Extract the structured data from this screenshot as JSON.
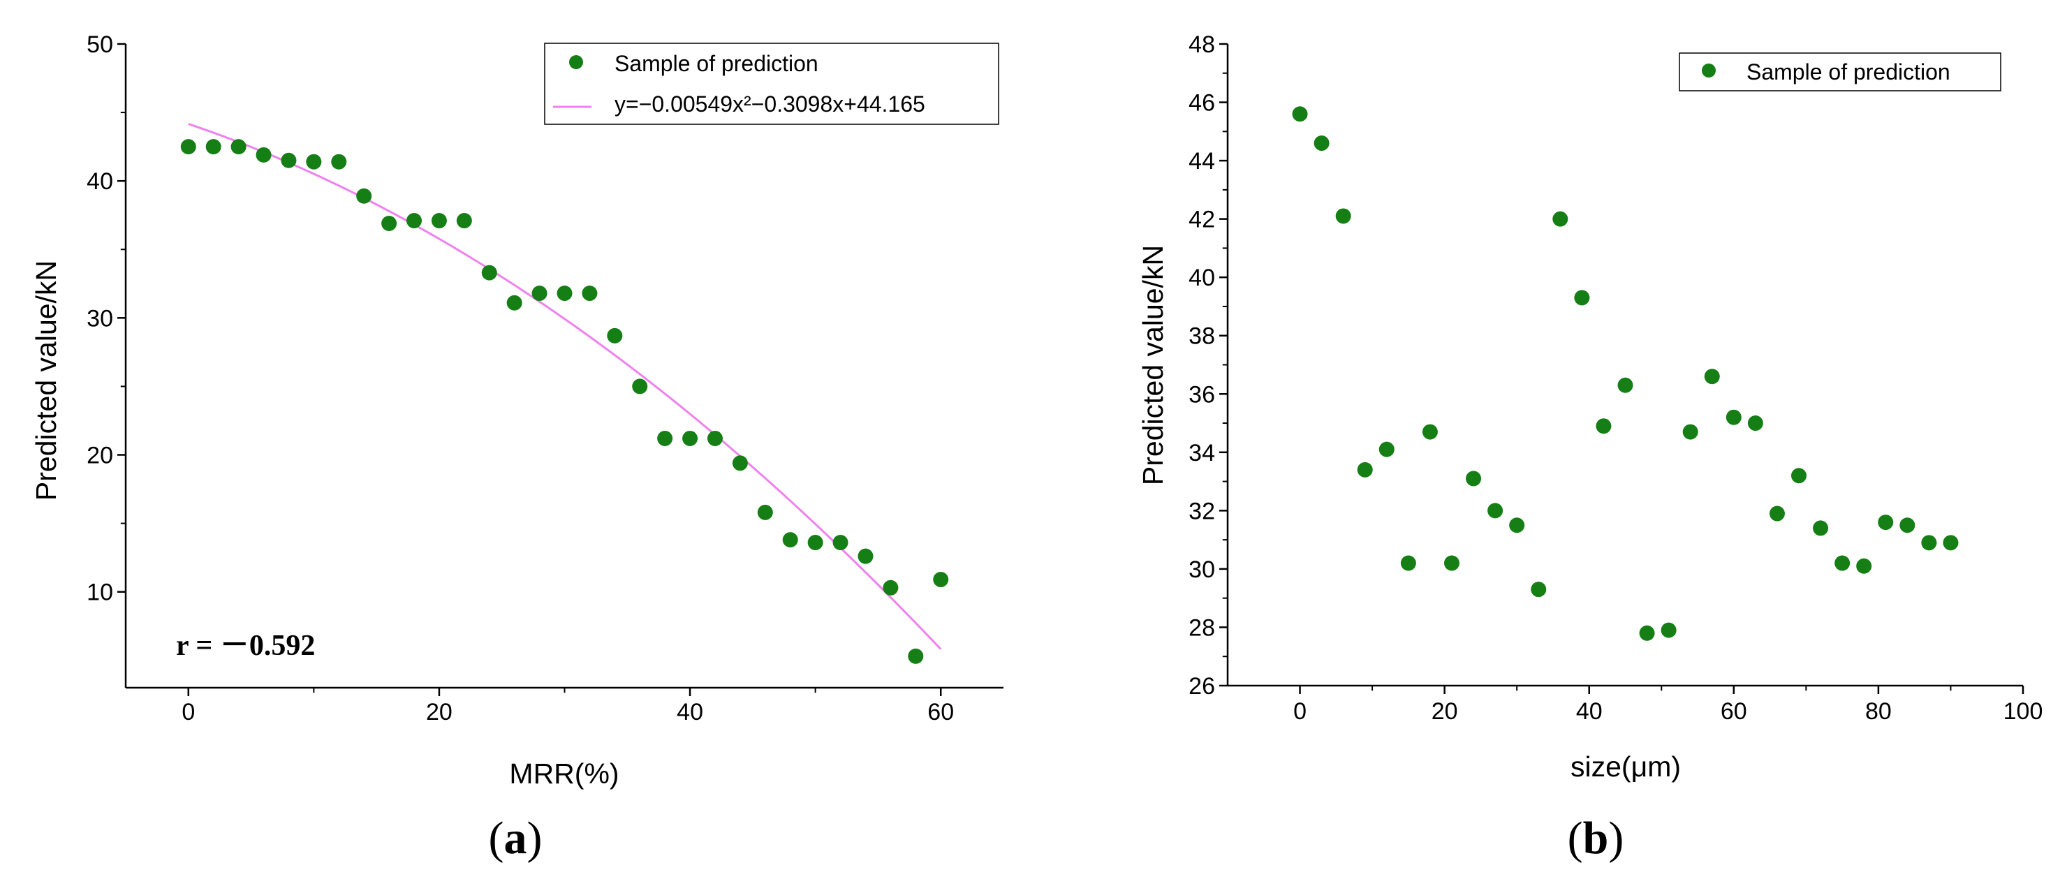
{
  "chart_data": [
    {
      "type": "scatter",
      "panel_caption": {
        "open": "(",
        "letter": "a",
        "close": ")"
      },
      "xlabel": "MRR(%)",
      "ylabel": "Predicted value/kN",
      "xlim": [
        -5,
        65
      ],
      "ylim": [
        3,
        50
      ],
      "xticks": [
        0,
        20,
        40,
        60
      ],
      "yticks": [
        10,
        20,
        30,
        40,
        50
      ],
      "legend": {
        "placement": "top-right",
        "entries": [
          "Sample of prediction",
          "y=−0.00549x²−0.3098x+44.165"
        ]
      },
      "annotation": "r = －0.592",
      "series": [
        {
          "name": "Sample of prediction",
          "color": "#157f15",
          "x": [
            0,
            2,
            4,
            6,
            8,
            10,
            12,
            14,
            16,
            18,
            20,
            22,
            24,
            26,
            28,
            30,
            32,
            34,
            36,
            38,
            40,
            42,
            44,
            46,
            48,
            50,
            52,
            54,
            56,
            58,
            60
          ],
          "y": [
            42.5,
            42.5,
            42.5,
            41.9,
            41.5,
            41.4,
            41.4,
            38.9,
            36.9,
            37.1,
            37.1,
            37.1,
            33.3,
            31.1,
            31.8,
            31.8,
            31.8,
            28.7,
            25.0,
            21.2,
            21.2,
            21.2,
            19.4,
            15.8,
            13.8,
            13.6,
            13.6,
            12.6,
            10.3,
            5.3,
            10.9
          ]
        }
      ],
      "fit": {
        "name": "y=−0.00549x²−0.3098x+44.165",
        "color": "#ee82ee",
        "a": -0.00549,
        "b": -0.3098,
        "c": 44.165,
        "x_range": [
          0,
          60
        ]
      }
    },
    {
      "type": "scatter",
      "panel_caption": {
        "open": "(",
        "letter": "b",
        "close": ")"
      },
      "xlabel": "size(μm)",
      "ylabel": "Predicted value/kN",
      "xlim": [
        -10,
        100
      ],
      "ylim": [
        26,
        48
      ],
      "xticks": [
        0,
        20,
        40,
        60,
        80,
        100
      ],
      "yticks": [
        26,
        28,
        30,
        32,
        34,
        36,
        38,
        40,
        42,
        44,
        46,
        48
      ],
      "legend": {
        "placement": "top-right",
        "entries": [
          "Sample of prediction"
        ]
      },
      "series": [
        {
          "name": "Sample of prediction",
          "color": "#157f15",
          "x": [
            0,
            3,
            6,
            9,
            12,
            15,
            18,
            21,
            24,
            27,
            30,
            33,
            36,
            39,
            42,
            45,
            48,
            51,
            54,
            57,
            60,
            63,
            66,
            69,
            72,
            75,
            78,
            81,
            84,
            87,
            90
          ],
          "y": [
            45.6,
            44.6,
            42.1,
            33.4,
            34.1,
            30.2,
            34.7,
            30.2,
            33.1,
            32.0,
            31.5,
            29.3,
            42.0,
            39.3,
            34.9,
            36.3,
            27.8,
            27.9,
            34.7,
            36.6,
            35.2,
            35.0,
            31.9,
            33.2,
            31.4,
            30.2,
            30.1,
            31.6,
            31.5,
            30.9,
            30.9
          ]
        }
      ]
    }
  ]
}
